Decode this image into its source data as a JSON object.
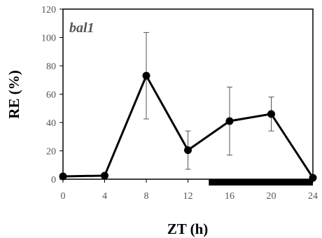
{
  "chart_data": {
    "type": "line",
    "annotation": "bal1",
    "xlabel": "ZT (h)",
    "ylabel": "RE (%)",
    "x": [
      0,
      4,
      8,
      12,
      16,
      20,
      24
    ],
    "xticks": [
      "0",
      "4",
      "8",
      "12",
      "16",
      "20",
      "24"
    ],
    "yticks": [
      "0",
      "20",
      "40",
      "60",
      "80",
      "100",
      "120"
    ],
    "xlim": [
      0,
      24
    ],
    "ylim": [
      0,
      120
    ],
    "series": [
      {
        "values": [
          2,
          2.5,
          73,
          20.5,
          41,
          46,
          1
        ],
        "error": [
          0,
          0,
          30.5,
          13.5,
          24,
          12,
          0
        ]
      }
    ],
    "dark_period": [
      14,
      24
    ],
    "grid": false,
    "colors": {
      "line": "#000000",
      "frame": "#000000",
      "dark_bar": "#000000"
    }
  }
}
